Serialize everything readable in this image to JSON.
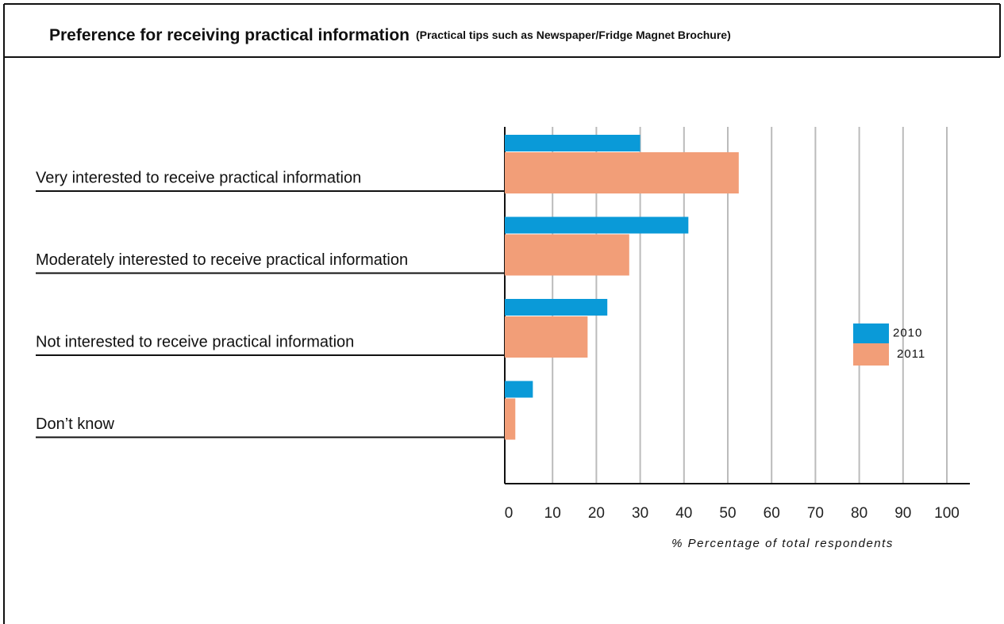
{
  "chart_data": {
    "type": "barh",
    "title": "Preference for receiving practical information",
    "subtitle": "(Practical tips such as Newspaper/Fridge Magnet Brochure)",
    "xlabel": "% Percentage of total respondents",
    "categories": [
      "Very interested to receive practical information",
      "Moderately interested to receive practical information",
      "Not interested to receive practical information",
      "Don’t know"
    ],
    "series": [
      {
        "name": "2010",
        "color": "#0a9ad8",
        "values": [
          30,
          41,
          22.5,
          5.5
        ]
      },
      {
        "name": "2011",
        "color": "#f29e78",
        "values": [
          52.5,
          27.5,
          18,
          1.5
        ]
      }
    ],
    "xlim": [
      0,
      100
    ],
    "xticks": [
      0,
      10,
      20,
      30,
      40,
      50,
      60,
      70,
      80,
      90,
      100
    ],
    "grid": true,
    "legend": "right"
  }
}
